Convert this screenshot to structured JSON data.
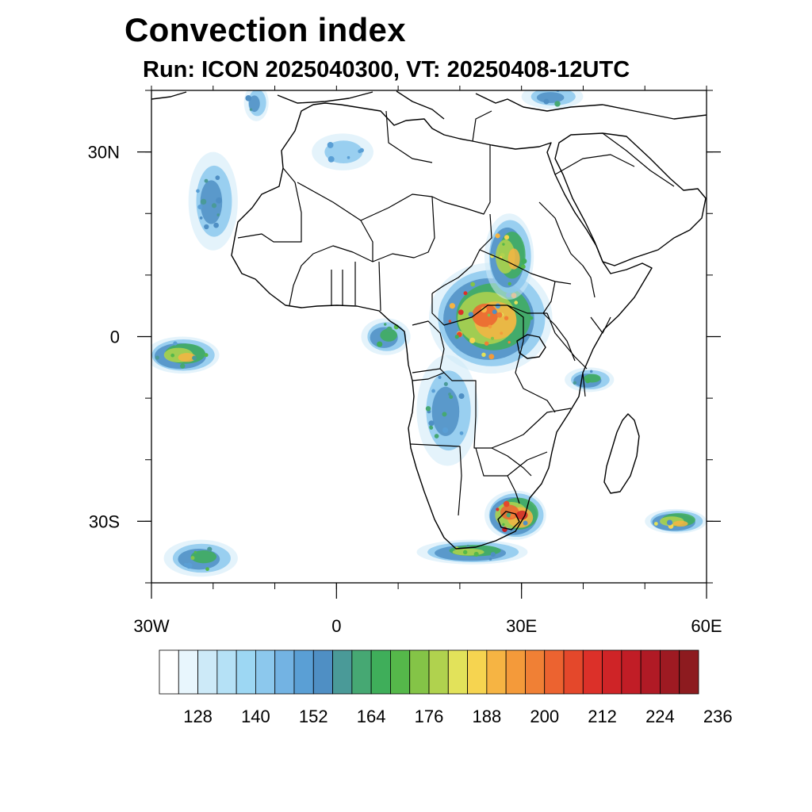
{
  "title": "Convection index",
  "subtitle": "Run: ICON 2025040300,  VT: 20250408-12UTC",
  "map": {
    "extent": {
      "lon": [
        -30,
        60
      ],
      "lat": [
        -40,
        40
      ]
    },
    "projection": "cylindrical equidistant",
    "x_ticks": [
      {
        "value": -30,
        "label": "30W"
      },
      {
        "value": 0,
        "label": "0"
      },
      {
        "value": 30,
        "label": "30E"
      },
      {
        "value": 60,
        "label": "60E"
      }
    ],
    "y_ticks": [
      {
        "value": 30,
        "label": "30N"
      },
      {
        "value": 0,
        "label": "0"
      },
      {
        "value": -30,
        "label": "30S"
      }
    ],
    "minor_x_every_deg": 10,
    "minor_y_every_deg": 10,
    "coastline_color": "#000000"
  },
  "colorbar": {
    "levels": [
      120,
      124,
      128,
      132,
      136,
      140,
      144,
      148,
      152,
      156,
      160,
      164,
      168,
      172,
      176,
      180,
      184,
      188,
      192,
      196,
      200,
      204,
      208,
      212,
      216,
      220,
      224,
      228,
      232,
      236,
      240
    ],
    "colors": [
      "#ffffff",
      "#e8f6fd",
      "#cdeaf8",
      "#b5e1f6",
      "#9dd7f3",
      "#8cc8ed",
      "#73b3e3",
      "#5a9fd5",
      "#4f8fc4",
      "#4a9a98",
      "#46a873",
      "#3fae5a",
      "#55b84a",
      "#84c447",
      "#b0d24e",
      "#e2e25a",
      "#f6d450",
      "#f6b443",
      "#f49a3a",
      "#f08035",
      "#ec6330",
      "#e4482b",
      "#dc3029",
      "#cf2427",
      "#c11d26",
      "#b01a25",
      "#9e1a22",
      "#8d1b1f",
      "#ffffff"
    ],
    "tick_labels": [
      "128",
      "140",
      "152",
      "164",
      "176",
      "188",
      "200",
      "212",
      "224",
      "236"
    ]
  },
  "chart_data": {
    "type": "heatmap",
    "title": "Convection index",
    "subtitle": "Run: ICON 2025040300,  VT: 20250408-12UTC",
    "xlim": [
      -30,
      60
    ],
    "ylim": [
      -40,
      40
    ],
    "colorbar_labels": [
      128,
      140,
      152,
      164,
      176,
      188,
      200,
      212,
      224,
      236
    ],
    "regions": [
      {
        "lon": 25,
        "lat": 3,
        "rx": 10,
        "ry": 9,
        "max_level": 212
      },
      {
        "lon": 28,
        "lat": 13,
        "rx": 4,
        "ry": 7,
        "max_level": 200
      },
      {
        "lon": 29,
        "lat": -29,
        "rx": 5,
        "ry": 4,
        "max_level": 224
      },
      {
        "lon": 22,
        "lat": -35,
        "rx": 9,
        "ry": 2,
        "max_level": 180
      },
      {
        "lon": -25,
        "lat": -3,
        "rx": 6,
        "ry": 3,
        "max_level": 190
      },
      {
        "lon": 55,
        "lat": -30,
        "rx": 5,
        "ry": 2,
        "max_level": 190
      },
      {
        "lon": 41,
        "lat": -7,
        "rx": 4,
        "ry": 2,
        "max_level": 176
      },
      {
        "lon": 18,
        "lat": -12,
        "rx": 5,
        "ry": 9,
        "max_level": 164
      },
      {
        "lon": -20,
        "lat": 22,
        "rx": 4,
        "ry": 8,
        "max_level": 160
      },
      {
        "lon": -13,
        "lat": 38,
        "rx": 2,
        "ry": 3,
        "max_level": 160
      },
      {
        "lon": 1,
        "lat": 30,
        "rx": 5,
        "ry": 3,
        "max_level": 150
      },
      {
        "lon": -22,
        "lat": -36,
        "rx": 6,
        "ry": 3,
        "max_level": 176
      },
      {
        "lon": 8,
        "lat": 0,
        "rx": 4,
        "ry": 3,
        "max_level": 176
      },
      {
        "lon": 35,
        "lat": 39,
        "rx": 5,
        "ry": 2,
        "max_level": 164
      }
    ]
  }
}
